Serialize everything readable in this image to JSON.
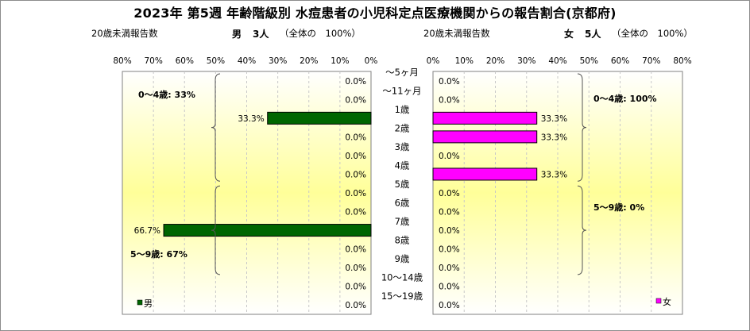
{
  "title": "2023年 第5週 年齢階級別 水痘患者の小児科定点医療機関からの報告割合(京都府)",
  "left_subtitle": {
    "under20": "20歳未満報告数",
    "sex": "男",
    "count": "3人",
    "overall": "（全体の　100%）"
  },
  "right_subtitle": {
    "under20": "20歳未満報告数",
    "sex": "女",
    "count": "5人",
    "overall": "（全体の　100%）"
  },
  "chart_data": {
    "type": "bar",
    "orientation": "horizontal-butterfly",
    "categories": [
      "～5ヶ月",
      "～11ヶ月",
      "1歳",
      "2歳",
      "3歳",
      "4歳",
      "5歳",
      "6歳",
      "7歳",
      "8歳",
      "9歳",
      "10～14歳",
      "15～19歳"
    ],
    "xlim": [
      0,
      80
    ],
    "ticks": [
      "80%",
      "70%",
      "60%",
      "50%",
      "40%",
      "30%",
      "20%",
      "10%",
      "0%"
    ],
    "ticks_right": [
      "0%",
      "10%",
      "20%",
      "30%",
      "40%",
      "50%",
      "60%",
      "70%",
      "80%"
    ],
    "series": [
      {
        "name": "男",
        "color": "#006600",
        "values": [
          0,
          0,
          33.3,
          0,
          0,
          0,
          0,
          0,
          66.7,
          0,
          0,
          0,
          0
        ],
        "labels": [
          "0.0%",
          "0.0%",
          "33.3%",
          "0.0%",
          "0.0%",
          "0.0%",
          "0.0%",
          "0.0%",
          "66.7%",
          "0.0%",
          "0.0%",
          "0.0%",
          "0.0%"
        ],
        "groups": [
          "0～4歳: 33%",
          "5～9歳: 67%"
        ]
      },
      {
        "name": "女",
        "color": "#ff00ff",
        "values": [
          0,
          0,
          33.3,
          33.3,
          0,
          33.3,
          0,
          0,
          0,
          0,
          0,
          0,
          0
        ],
        "labels": [
          "0.0%",
          "0.0%",
          "33.3%",
          "33.3%",
          "0.0%",
          "33.3%",
          "0.0%",
          "0.0%",
          "0.0%",
          "0.0%",
          "0.0%",
          "0.0%",
          "0.0%"
        ],
        "groups": [
          "0～4歳: 100%",
          "5～9歳: 0%"
        ]
      }
    ],
    "gridlines": true,
    "legend": [
      "男",
      "女"
    ]
  }
}
